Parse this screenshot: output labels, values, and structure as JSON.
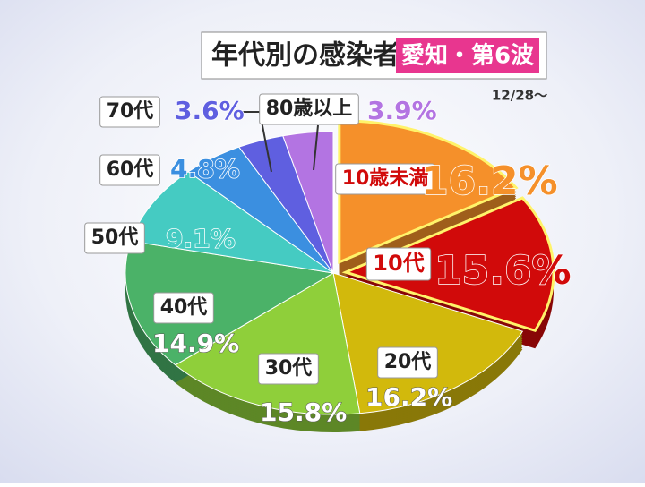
{
  "chart_data": {
    "type": "pie",
    "title": "年代別の感染者",
    "subtitle": "愛知・第6波",
    "note": "12/28～",
    "categories": [
      "10歳未満",
      "10代",
      "20代",
      "30代",
      "40代",
      "50代",
      "60代",
      "70代",
      "80歳以上"
    ],
    "values": [
      16.2,
      15.6,
      16.2,
      15.8,
      14.9,
      9.1,
      4.8,
      3.6,
      3.9
    ],
    "value_labels": [
      "16.2%",
      "15.6%",
      "16.2%",
      "15.8%",
      "14.9%",
      "9.1%",
      "4.8%",
      "3.6%",
      "3.9%"
    ],
    "colors": [
      "#f5902a",
      "#d10a0a",
      "#d2b90c",
      "#8fcf3a",
      "#4bb268",
      "#45cbc2",
      "#3b8fe0",
      "#5f5fe0",
      "#b374e2"
    ]
  }
}
